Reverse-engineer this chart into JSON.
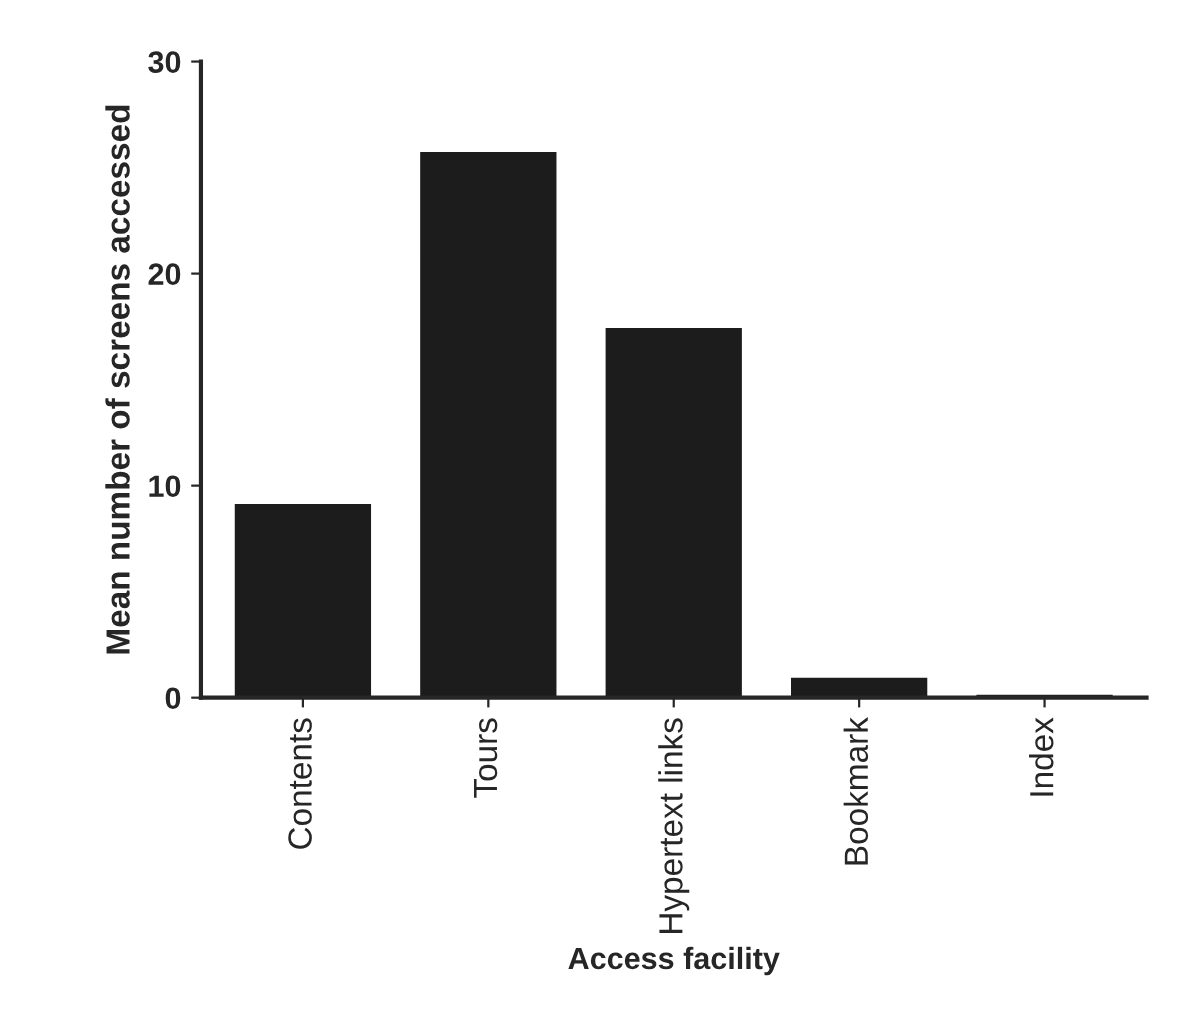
{
  "chart_data": {
    "type": "bar",
    "xlabel": "Access facility",
    "ylabel": "Mean number of screens accessed",
    "categories": [
      "Contents",
      "Tours",
      "Hypertext links",
      "Bookmark",
      "Index"
    ],
    "values": [
      9.2,
      25.8,
      17.5,
      1.0,
      0.2
    ],
    "color": "#1c1c1c",
    "ylim": [
      0,
      30
    ],
    "yticks": [
      0,
      10,
      20,
      30
    ],
    "grid": false
  }
}
